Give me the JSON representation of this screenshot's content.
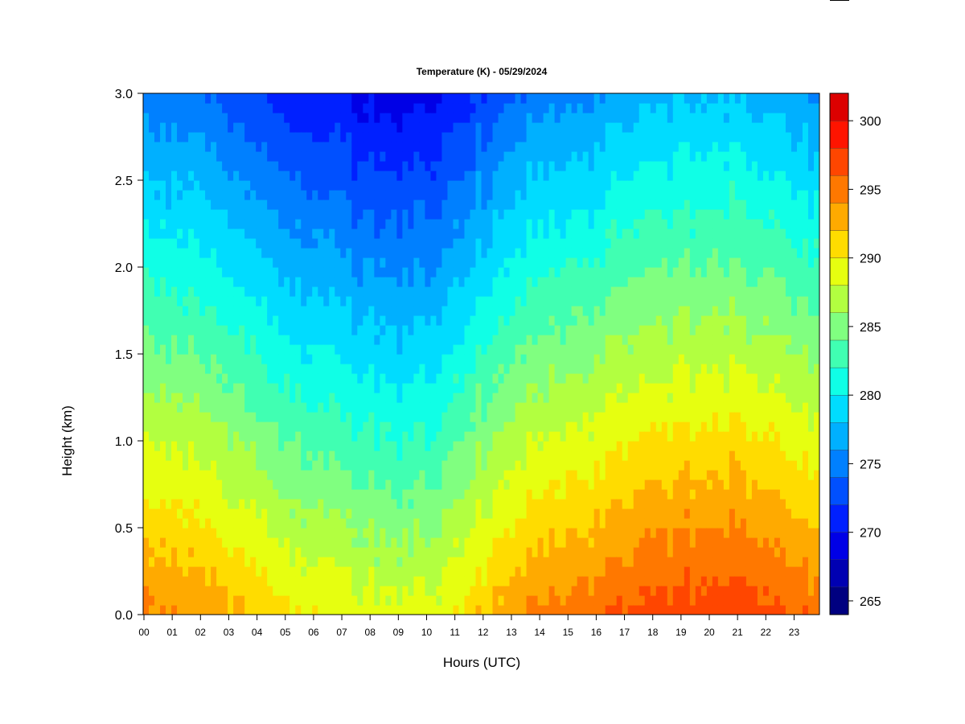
{
  "chart_data": {
    "type": "heatmap",
    "title": "Temperature (K) - 05/29/2024",
    "xlabel": "Hours (UTC)",
    "ylabel": "Height (km)",
    "x_ticks": [
      "00",
      "01",
      "02",
      "03",
      "04",
      "05",
      "06",
      "07",
      "08",
      "09",
      "10",
      "11",
      "12",
      "13",
      "14",
      "15",
      "16",
      "17",
      "18",
      "19",
      "20",
      "21",
      "22",
      "23"
    ],
    "x_range_hours": [
      0,
      23.9
    ],
    "y_ticks": [
      "0.0",
      "0.5",
      "1.0",
      "1.5",
      "2.0",
      "2.5",
      "3.0"
    ],
    "y_range_km": [
      0,
      3
    ],
    "colorbar": {
      "range_k": [
        264,
        302
      ],
      "step_k": 2,
      "tick_values": [
        265,
        270,
        275,
        280,
        285,
        290,
        295,
        300
      ],
      "tick_labels": [
        "265",
        "270",
        "275",
        "280",
        "285",
        "290",
        "295",
        "300"
      ],
      "colors": [
        "#000080",
        "#0000b2",
        "#0000e6",
        "#0020ff",
        "#0050ff",
        "#0080ff",
        "#00b0ff",
        "#00dcff",
        "#10ffe6",
        "#40ffb2",
        "#80ff80",
        "#b2ff40",
        "#e6ff10",
        "#ffdc00",
        "#ffaa00",
        "#ff7800",
        "#ff4600",
        "#ff1400",
        "#dc0000",
        "#aa0000",
        "#800000"
      ]
    },
    "surface_temperature_k": {
      "hours": [
        0,
        1,
        2,
        3,
        4,
        5,
        6,
        7,
        8,
        9,
        10,
        11,
        12,
        13,
        14,
        15,
        16,
        17,
        18,
        19,
        20,
        21,
        22,
        23
      ],
      "values": [
        294.5,
        294,
        293.5,
        292.5,
        291.5,
        290.5,
        290,
        289.5,
        289,
        288.5,
        288.8,
        290,
        292,
        293.5,
        294.5,
        295,
        295.5,
        296,
        296.5,
        297,
        297.5,
        297.2,
        296.5,
        295.5
      ]
    },
    "lapse_rate_k_per_km": 6.5
  }
}
